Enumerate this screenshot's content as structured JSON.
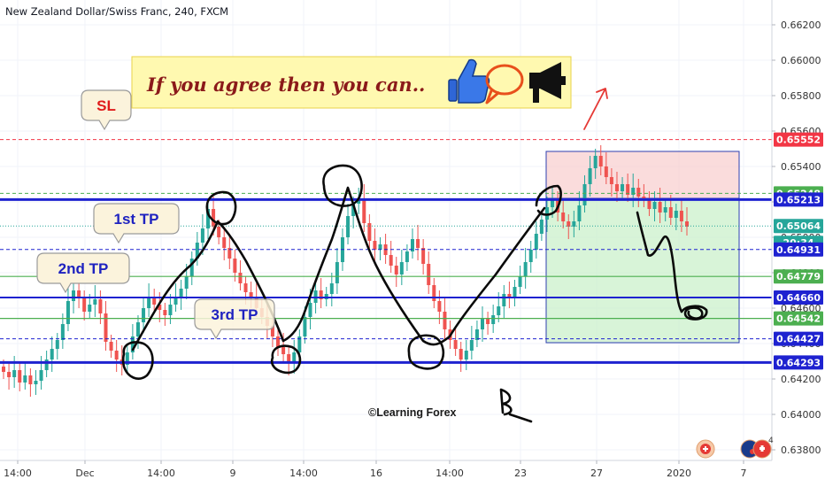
{
  "header": {
    "title": "New Zealand Dollar/Swiss Franc, 240, FXCM"
  },
  "banner": {
    "text": "If you agree then you can.."
  },
  "watermark": "©Learning Forex",
  "colors": {
    "up": "#26a69a",
    "down": "#ef5350",
    "sl_line": "#f23645",
    "support_blue": "#1e22d0",
    "tp_green": "#4caf50",
    "callout_bg": "#fbf3dc",
    "banner_bg": "#fff9b0",
    "banner_text": "#8b1a1a"
  },
  "chart_data": {
    "type": "candlestick",
    "title": "New Zealand Dollar/Swiss Franc, 240, FXCM",
    "ylim": [
      0.638,
      0.664
    ],
    "y_ticks": [
      "0.66200",
      "0.66000",
      "0.65800",
      "0.65600",
      "0.65400",
      "0.65200",
      "0.65000",
      "0.64800",
      "0.64600",
      "0.64400",
      "0.64200",
      "0.64000",
      "0.63800"
    ],
    "x_ticks": [
      "14:00",
      "Dec",
      "14:00",
      "9",
      "14:00",
      "16",
      "14:00",
      "23",
      "27",
      "2020",
      "7"
    ],
    "price_labels": [
      {
        "value": "0.65552",
        "style": "red"
      },
      {
        "value": "0.65248",
        "style": "green"
      },
      {
        "value": "0.65213",
        "style": "blue"
      },
      {
        "value": "0.65064",
        "style": "teal"
      },
      {
        "value": "20:34",
        "style": "teal"
      },
      {
        "value": "0.64931",
        "style": "blue"
      },
      {
        "value": "0.64779",
        "style": "green"
      },
      {
        "value": "0.64660",
        "style": "blue"
      },
      {
        "value": "0.64542",
        "style": "green"
      },
      {
        "value": "0.64427",
        "style": "blue"
      },
      {
        "value": "0.64293",
        "style": "blue"
      }
    ],
    "callouts": [
      "SL",
      "1st TP",
      "2nd TP",
      "3rd TP"
    ],
    "close_series": [
      0.6424,
      0.6421,
      0.6425,
      0.6418,
      0.6422,
      0.6417,
      0.6419,
      0.6425,
      0.6431,
      0.6437,
      0.6442,
      0.6451,
      0.6464,
      0.647,
      0.6466,
      0.6458,
      0.6462,
      0.6465,
      0.6457,
      0.6441,
      0.6436,
      0.6431,
      0.6428,
      0.6435,
      0.6444,
      0.6452,
      0.646,
      0.6466,
      0.6462,
      0.6459,
      0.6456,
      0.6462,
      0.6466,
      0.6471,
      0.6478,
      0.6488,
      0.6497,
      0.6505,
      0.6516,
      0.6506,
      0.65,
      0.6494,
      0.6488,
      0.648,
      0.6474,
      0.6469,
      0.6466,
      0.646,
      0.6455,
      0.645,
      0.6444,
      0.6438,
      0.6434,
      0.6429,
      0.6435,
      0.6444,
      0.6455,
      0.6463,
      0.647,
      0.6465,
      0.6468,
      0.6474,
      0.6486,
      0.65,
      0.6512,
      0.6519,
      0.6522,
      0.6508,
      0.6498,
      0.6493,
      0.6496,
      0.649,
      0.6484,
      0.6479,
      0.6486,
      0.6492,
      0.6499,
      0.6494,
      0.6485,
      0.6473,
      0.6464,
      0.6458,
      0.6448,
      0.6442,
      0.6437,
      0.6431,
      0.6436,
      0.6442,
      0.6448,
      0.6454,
      0.6451,
      0.6456,
      0.6461,
      0.6468,
      0.6466,
      0.6472,
      0.6478,
      0.6486,
      0.6493,
      0.6502,
      0.651,
      0.6517,
      0.6521,
      0.6514,
      0.6509,
      0.6506,
      0.6509,
      0.6518,
      0.653,
      0.6539,
      0.6546,
      0.654,
      0.6534,
      0.653,
      0.6526,
      0.653,
      0.6524,
      0.6528,
      0.6523,
      0.6522,
      0.6516,
      0.652,
      0.6514,
      0.6517,
      0.6511,
      0.6515,
      0.6509,
      0.6506
    ]
  }
}
